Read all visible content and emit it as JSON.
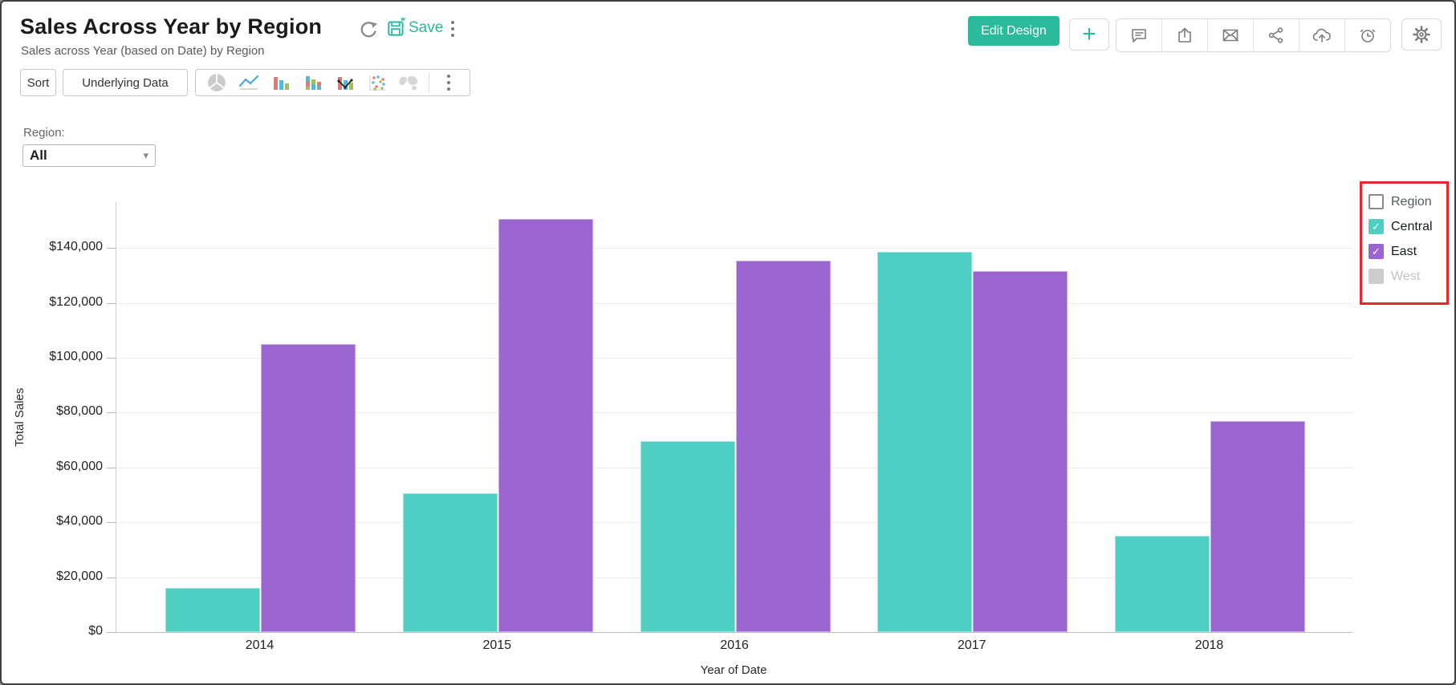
{
  "header": {
    "title": "Sales Across Year by Region",
    "subtitle": "Sales across Year (based on Date) by Region",
    "save_label": "Save",
    "edit_design_label": "Edit Design",
    "accent_color": "#2abb9c",
    "action_icons": [
      "add",
      "comment",
      "export",
      "mail",
      "share",
      "cloud-upload",
      "alarm",
      "settings"
    ]
  },
  "toolbar": {
    "sort_label": "Sort",
    "underlying_data_label": "Underlying Data",
    "chart_types": [
      "pie",
      "line",
      "bar",
      "stacked-bar",
      "combo",
      "scatter",
      "map",
      "more"
    ]
  },
  "filter": {
    "label": "Region:",
    "value": "All"
  },
  "legend": {
    "title": "Region",
    "highlight_color": "#e8262d",
    "items": [
      {
        "label": "Central",
        "color": "#4fcec3",
        "checked": true,
        "disabled": false
      },
      {
        "label": "East",
        "color": "#9a64d1",
        "checked": true,
        "disabled": false
      },
      {
        "label": "West",
        "color": "#cdcdcd",
        "checked": false,
        "disabled": true
      }
    ]
  },
  "chart_data": {
    "type": "bar",
    "title": "Sales Across Year by Region",
    "xlabel": "Year of Date",
    "ylabel": "Total Sales",
    "categories": [
      "2014",
      "2015",
      "2016",
      "2017",
      "2018"
    ],
    "series": [
      {
        "name": "Central",
        "color": "#4fcec3",
        "values": [
          16000,
          50500,
          69500,
          138500,
          35000
        ]
      },
      {
        "name": "East",
        "color": "#9a64d1",
        "values": [
          105000,
          150500,
          135500,
          131500,
          77000
        ]
      }
    ],
    "ylim": [
      0,
      156700
    ],
    "yticks": [
      {
        "value": 0,
        "label": "$0"
      },
      {
        "value": 20000,
        "label": "$20,000"
      },
      {
        "value": 40000,
        "label": "$40,000"
      },
      {
        "value": 60000,
        "label": "$60,000"
      },
      {
        "value": 80000,
        "label": "$80,000"
      },
      {
        "value": 100000,
        "label": "$100,000"
      },
      {
        "value": 120000,
        "label": "$120,000"
      },
      {
        "value": 140000,
        "label": "$140,000"
      }
    ],
    "grid": true,
    "legend_position": "right"
  }
}
